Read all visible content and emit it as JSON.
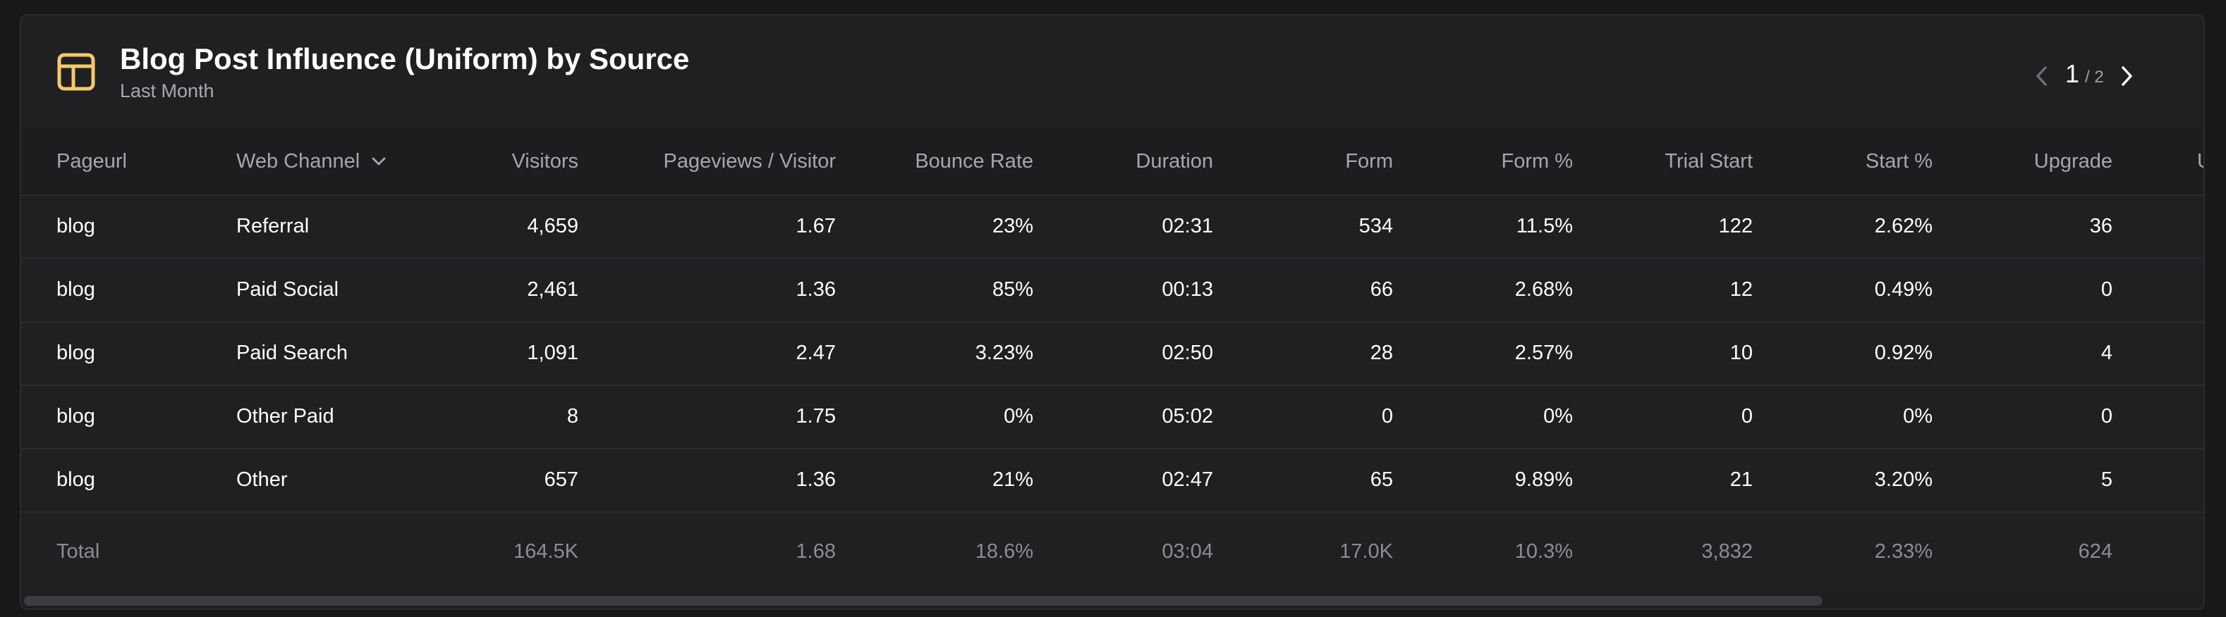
{
  "header": {
    "title": "Blog Post Influence (Uniform) by Source",
    "subtitle": "Last Month",
    "icon": "table-icon",
    "accent": "#f5c96a"
  },
  "pager": {
    "current": "1",
    "total": "/ 2"
  },
  "columns": {
    "pageurl": "Pageurl",
    "channel": "Web Channel",
    "visitors": "Visitors",
    "ppv": "Pageviews / Visitor",
    "bounce": "Bounce Rate",
    "duration": "Duration",
    "form": "Form",
    "formp": "Form %",
    "trial": "Trial Start",
    "startp": "Start %",
    "upgrade": "Upgrade",
    "extra": "U"
  },
  "rows": [
    {
      "pageurl": "blog",
      "channel": "Referral",
      "visitors": "4,659",
      "ppv": "1.67",
      "bounce": "23%",
      "duration": "02:31",
      "form": "534",
      "formp": "11.5%",
      "trial": "122",
      "startp": "2.62%",
      "upgrade": "36"
    },
    {
      "pageurl": "blog",
      "channel": "Paid Social",
      "visitors": "2,461",
      "ppv": "1.36",
      "bounce": "85%",
      "duration": "00:13",
      "form": "66",
      "formp": "2.68%",
      "trial": "12",
      "startp": "0.49%",
      "upgrade": "0"
    },
    {
      "pageurl": "blog",
      "channel": "Paid Search",
      "visitors": "1,091",
      "ppv": "2.47",
      "bounce": "3.23%",
      "duration": "02:50",
      "form": "28",
      "formp": "2.57%",
      "trial": "10",
      "startp": "0.92%",
      "upgrade": "4"
    },
    {
      "pageurl": "blog",
      "channel": "Other Paid",
      "visitors": "8",
      "ppv": "1.75",
      "bounce": "0%",
      "duration": "05:02",
      "form": "0",
      "formp": "0%",
      "trial": "0",
      "startp": "0%",
      "upgrade": "0"
    },
    {
      "pageurl": "blog",
      "channel": "Other",
      "visitors": "657",
      "ppv": "1.36",
      "bounce": "21%",
      "duration": "02:47",
      "form": "65",
      "formp": "9.89%",
      "trial": "21",
      "startp": "3.20%",
      "upgrade": "5"
    }
  ],
  "total": {
    "label": "Total",
    "visitors": "164.5K",
    "ppv": "1.68",
    "bounce": "18.6%",
    "duration": "03:04",
    "form": "17.0K",
    "formp": "10.3%",
    "trial": "3,832",
    "startp": "2.33%",
    "upgrade": "624"
  }
}
